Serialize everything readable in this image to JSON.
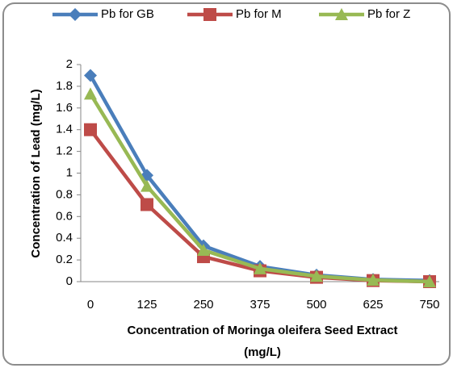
{
  "chart_data": {
    "type": "line",
    "y_label": "Concentration of Lead (mg/L)",
    "x_label": [
      "Concentration of Moringa oleifera Seed Extract",
      "(mg/L)"
    ],
    "categories": [
      "0",
      "125",
      "250",
      "375",
      "500",
      "625",
      "750"
    ],
    "series": [
      {
        "name": "Pb for GB",
        "color": "#4a7ebb",
        "marker": "diamond",
        "values": [
          1.9,
          0.98,
          0.33,
          0.14,
          0.06,
          0.02,
          0.01
        ]
      },
      {
        "name": "Pb for M",
        "color": "#be4b48",
        "marker": "square",
        "values": [
          1.4,
          0.71,
          0.23,
          0.1,
          0.04,
          0.01,
          0
        ]
      },
      {
        "name": "Pb for Z",
        "color": "#98b954",
        "marker": "triangle",
        "values": [
          1.73,
          0.88,
          0.29,
          0.12,
          0.05,
          0.015,
          0
        ]
      }
    ],
    "ylim": [
      0,
      2
    ],
    "yticks": [
      0,
      0.2,
      0.4,
      0.6,
      0.8,
      1,
      1.2,
      1.4,
      1.6,
      1.8,
      2
    ],
    "legend": "top",
    "grid": false
  }
}
